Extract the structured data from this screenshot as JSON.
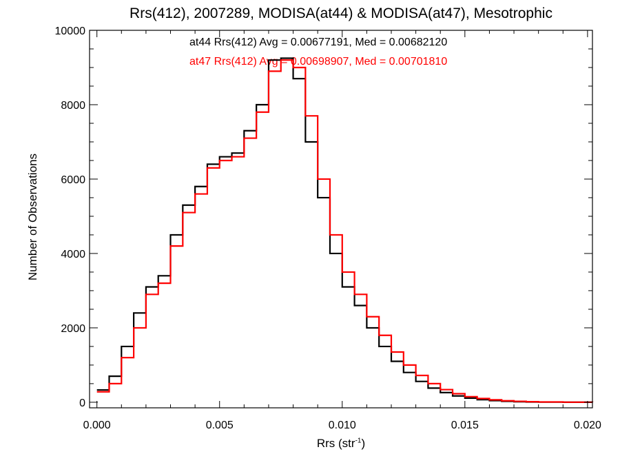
{
  "chart_data": {
    "type": "line",
    "title": "Rrs(412), 2007289, MODISA(at44) & MODISA(at47), Mesotrophic",
    "xlabel": "Rrs (str",
    "xlabel_exponent": "-1",
    "xlabel_close": ")",
    "ylabel": "Number of Observations",
    "xlim": [
      -0.0003,
      0.0202
    ],
    "ylim": [
      -150,
      10000
    ],
    "xticks": [
      0.0,
      0.005,
      0.01,
      0.015,
      0.02
    ],
    "xtick_labels": [
      "0.000",
      "0.005",
      "0.010",
      "0.015",
      "0.020"
    ],
    "yticks": [
      0,
      2000,
      4000,
      6000,
      8000,
      10000
    ],
    "ytick_labels": [
      "0",
      "2000",
      "4000",
      "6000",
      "8000",
      "10000"
    ],
    "grid": false,
    "step": true,
    "annotations": [
      {
        "text": "at44 Rrs(412) Avg = 0.00677191, Med = 0.00682120",
        "color": "#000000"
      },
      {
        "text": "at47 Rrs(412) Avg = 0.00698907, Med = 0.00701810",
        "color": "#ff0000"
      }
    ],
    "series": [
      {
        "color": "#000000",
        "points": [
          [
            0.0,
            330
          ],
          [
            0.0005,
            700
          ],
          [
            0.001,
            1500
          ],
          [
            0.0015,
            2400
          ],
          [
            0.002,
            3100
          ],
          [
            0.0025,
            3400
          ],
          [
            0.003,
            4500
          ],
          [
            0.0035,
            5300
          ],
          [
            0.004,
            5800
          ],
          [
            0.0045,
            6400
          ],
          [
            0.005,
            6600
          ],
          [
            0.0055,
            6700
          ],
          [
            0.006,
            7300
          ],
          [
            0.0065,
            8000
          ],
          [
            0.007,
            9200
          ],
          [
            0.0075,
            9250
          ],
          [
            0.008,
            8700
          ],
          [
            0.0085,
            7000
          ],
          [
            0.009,
            5500
          ],
          [
            0.0095,
            4000
          ],
          [
            0.01,
            3100
          ],
          [
            0.0105,
            2600
          ],
          [
            0.011,
            2000
          ],
          [
            0.0115,
            1500
          ],
          [
            0.012,
            1100
          ],
          [
            0.0125,
            800
          ],
          [
            0.013,
            560
          ],
          [
            0.0135,
            380
          ],
          [
            0.014,
            260
          ],
          [
            0.0145,
            170
          ],
          [
            0.015,
            110
          ],
          [
            0.0155,
            70
          ],
          [
            0.016,
            45
          ],
          [
            0.0165,
            25
          ],
          [
            0.017,
            15
          ],
          [
            0.0175,
            8
          ],
          [
            0.018,
            4
          ],
          [
            0.019,
            1
          ],
          [
            0.0202,
            0
          ]
        ]
      },
      {
        "color": "#ff0000",
        "points": [
          [
            0.0,
            280
          ],
          [
            0.0005,
            500
          ],
          [
            0.001,
            1200
          ],
          [
            0.0015,
            2000
          ],
          [
            0.002,
            2900
          ],
          [
            0.0025,
            3200
          ],
          [
            0.003,
            4200
          ],
          [
            0.0035,
            5100
          ],
          [
            0.004,
            5600
          ],
          [
            0.0045,
            6300
          ],
          [
            0.005,
            6500
          ],
          [
            0.0055,
            6600
          ],
          [
            0.006,
            7100
          ],
          [
            0.0065,
            7800
          ],
          [
            0.007,
            8900
          ],
          [
            0.0075,
            9200
          ],
          [
            0.008,
            9000
          ],
          [
            0.0085,
            7700
          ],
          [
            0.009,
            6000
          ],
          [
            0.0095,
            4500
          ],
          [
            0.01,
            3500
          ],
          [
            0.0105,
            2900
          ],
          [
            0.011,
            2300
          ],
          [
            0.0115,
            1800
          ],
          [
            0.012,
            1350
          ],
          [
            0.0125,
            1000
          ],
          [
            0.013,
            720
          ],
          [
            0.0135,
            500
          ],
          [
            0.014,
            340
          ],
          [
            0.0145,
            230
          ],
          [
            0.015,
            150
          ],
          [
            0.0155,
            100
          ],
          [
            0.016,
            65
          ],
          [
            0.0165,
            40
          ],
          [
            0.017,
            25
          ],
          [
            0.0175,
            15
          ],
          [
            0.018,
            8
          ],
          [
            0.019,
            2
          ],
          [
            0.0202,
            0
          ]
        ]
      }
    ]
  }
}
